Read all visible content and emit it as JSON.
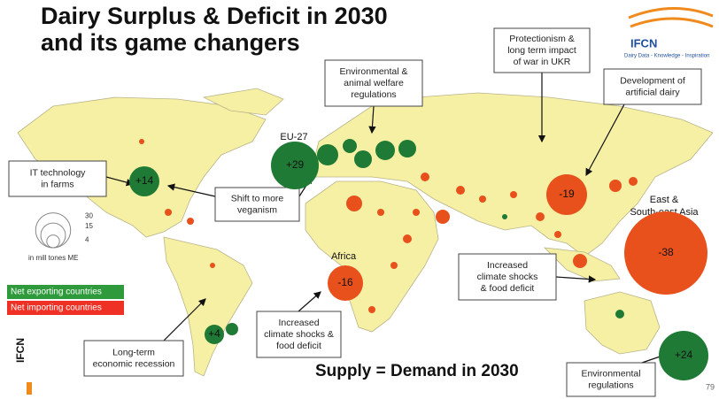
{
  "title": [
    "Dairy Surplus & Deficit in 2030",
    "and its game changers"
  ],
  "logo": {
    "name": "IFCN",
    "tagline": "Dairy Data - Knowledge - Inspiration"
  },
  "callouts": [
    {
      "lines": [
        "IT technology",
        "in farms"
      ]
    },
    {
      "lines": [
        "Environmental &",
        "animal welfare",
        "regulations"
      ]
    },
    {
      "lines": [
        "Protectionism &",
        "long term impact",
        "of war in UKR"
      ]
    },
    {
      "lines": [
        "Development of",
        "artificial dairy"
      ]
    },
    {
      "lines": [
        "Shift to more",
        "veganism"
      ]
    },
    {
      "lines": [
        "Increased",
        "climate shocks",
        "& food deficit"
      ]
    },
    {
      "lines": [
        "Increased",
        "climate shocks &",
        "food deficit"
      ]
    },
    {
      "lines": [
        "Long-term",
        "economic recession"
      ]
    },
    {
      "lines": [
        "Environmental",
        "regulations"
      ]
    }
  ],
  "region_names": [
    {
      "lines": [
        "EU-27"
      ]
    },
    {
      "lines": [
        "Africa"
      ]
    },
    {
      "lines": [
        "East &",
        "South-east Asia"
      ]
    }
  ],
  "bubbles": [
    {
      "label": "+29",
      "color": "#1e7a34"
    },
    {
      "label": "+14",
      "color": "#1e7a34"
    },
    {
      "label": "-19",
      "color": "#e8501c"
    },
    {
      "label": "-38",
      "color": "#e8501c"
    },
    {
      "label": "-16",
      "color": "#e8501c"
    },
    {
      "label": "+4",
      "color": "#1e7a34"
    },
    {
      "label": "+24",
      "color": "#1e7a34"
    }
  ],
  "size_legend": {
    "values": [
      30,
      15,
      4
    ],
    "unit": "in mill tones ME"
  },
  "color_legend": [
    {
      "label": "Net exporting countries",
      "color": "#2e9a3c"
    },
    {
      "label": "Net importing countries",
      "color": "#ee3124"
    }
  ],
  "footer": "Supply = Demand in 2030",
  "side_label": "IFCN",
  "page_number": "79"
}
